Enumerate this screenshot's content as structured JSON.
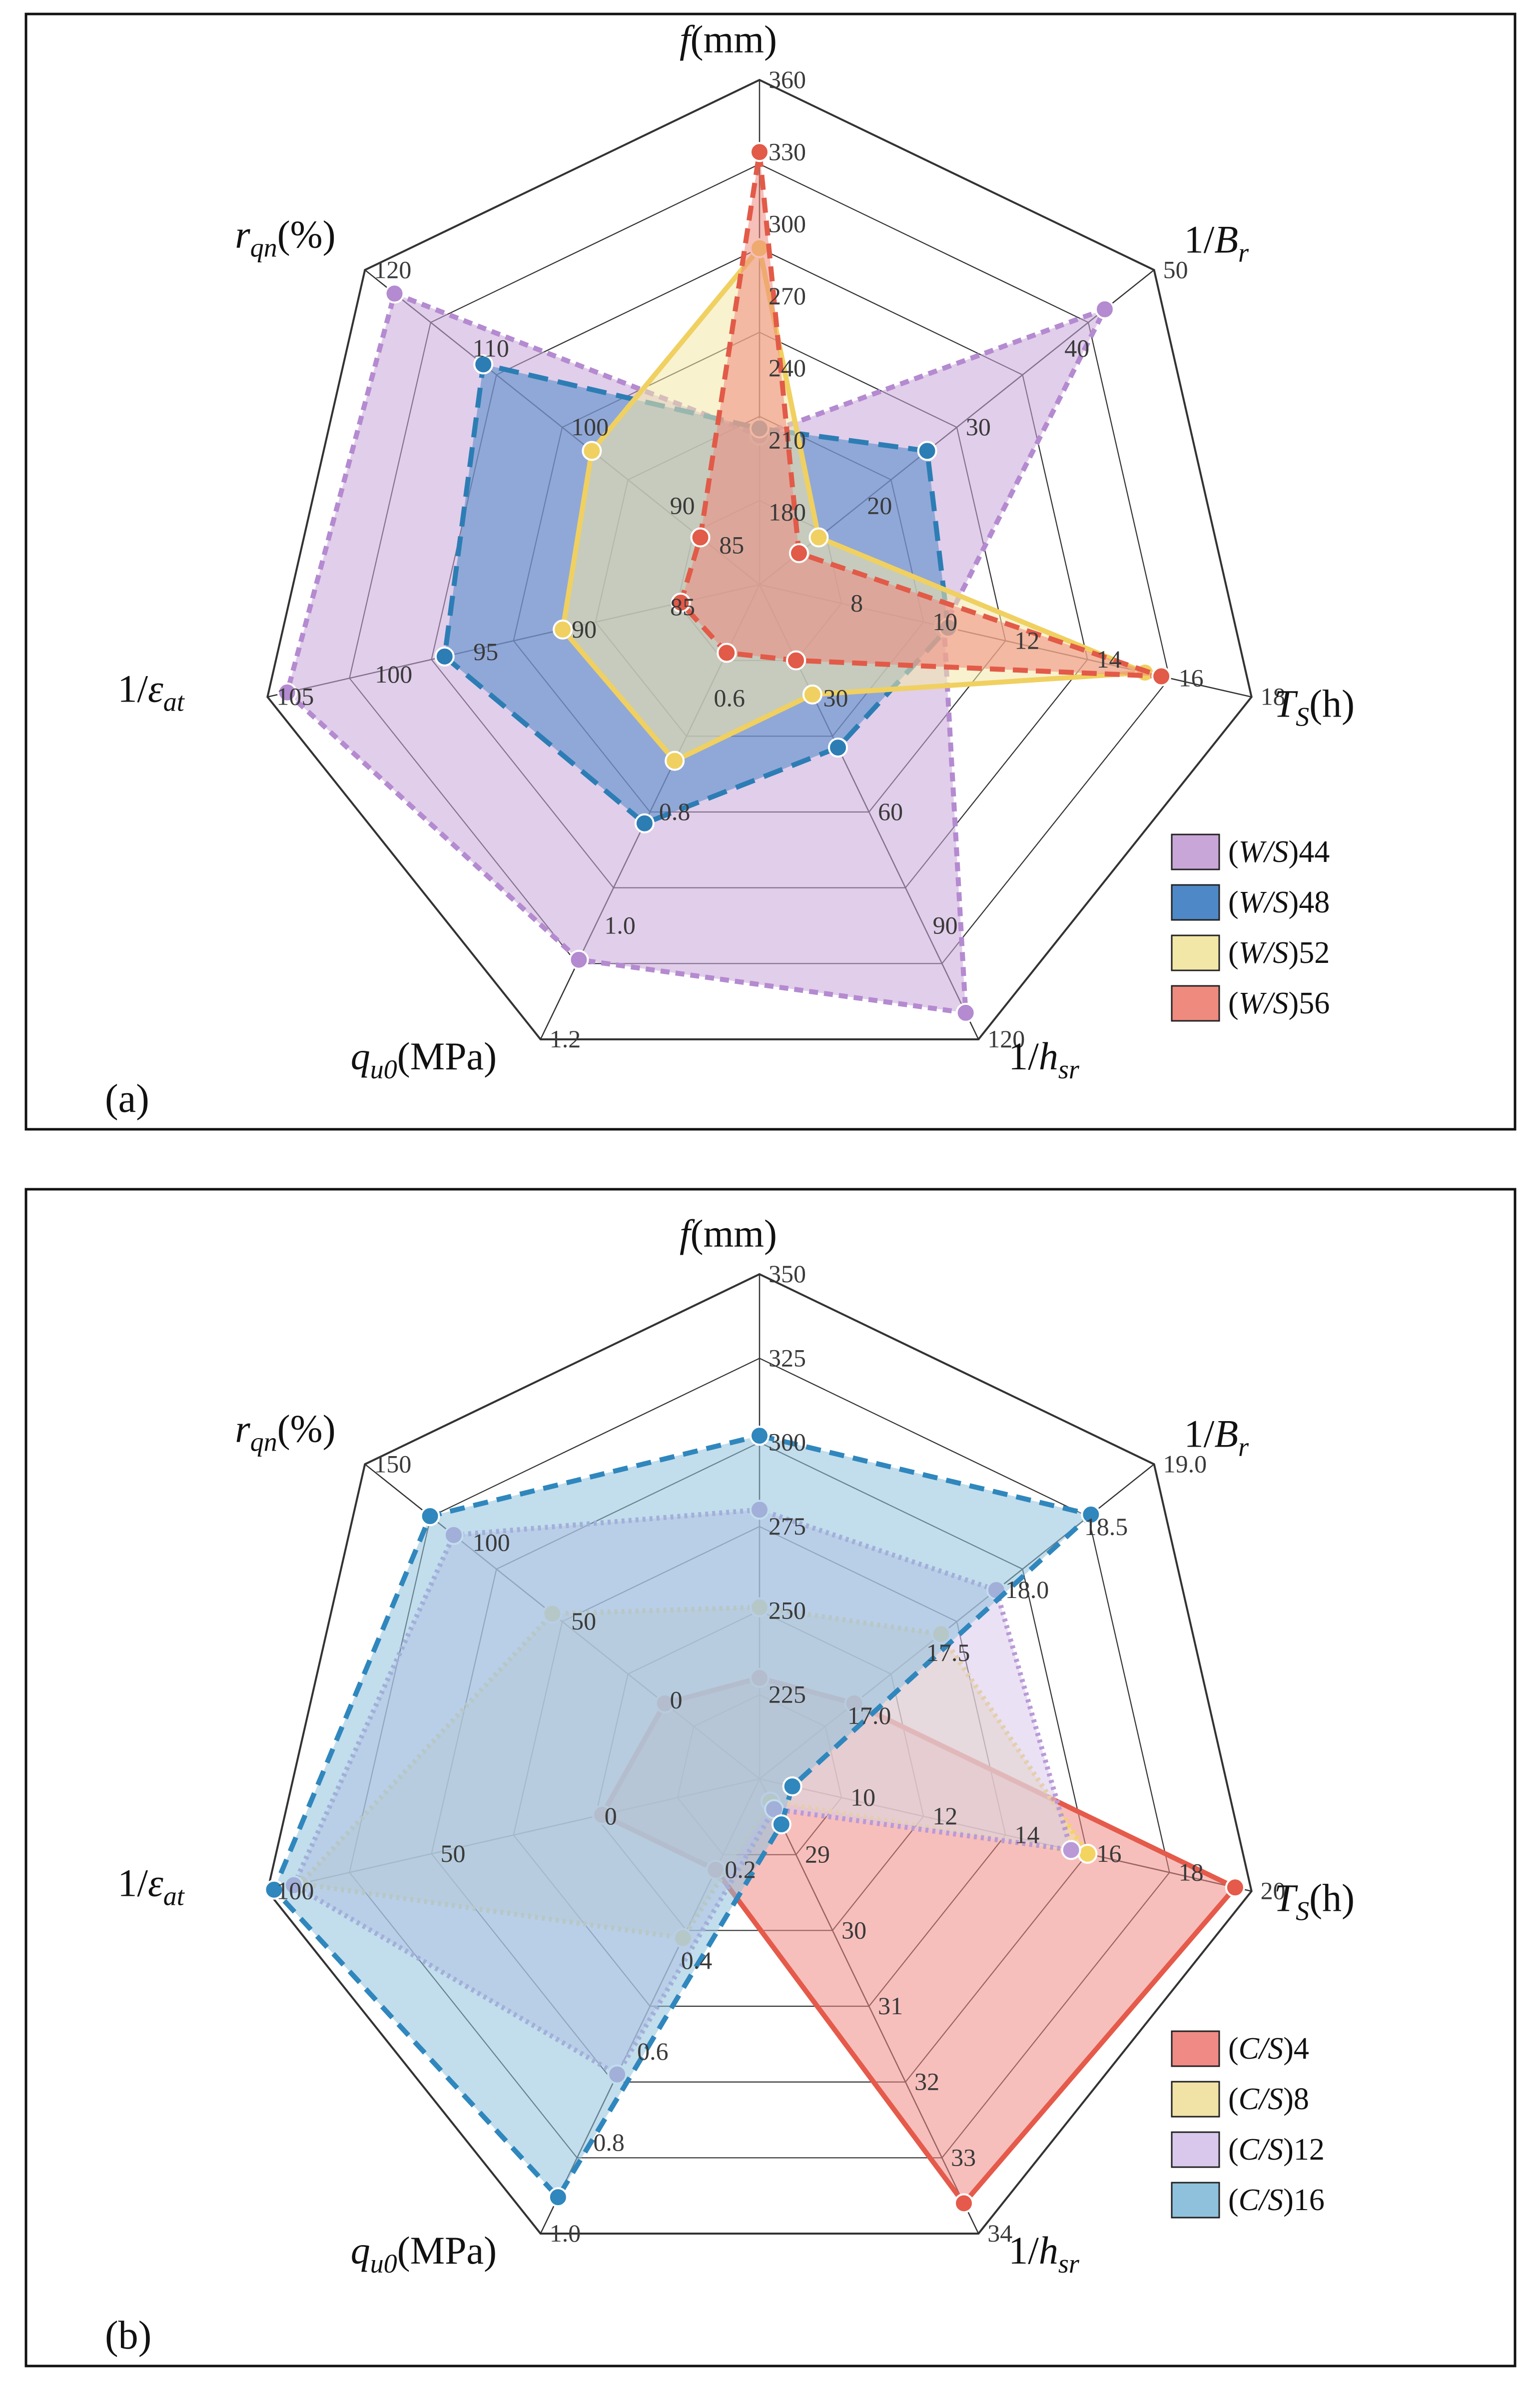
{
  "chart_data": [
    {
      "type": "radar",
      "panel_label": "(a)",
      "axes": [
        {
          "key": "f",
          "label_italic": "f",
          "label_rest": "(mm)",
          "label_sub": "",
          "ticks": [
            "180",
            "210",
            "240",
            "270",
            "300",
            "330",
            "360"
          ],
          "range": [
            150,
            360
          ]
        },
        {
          "key": "1/Br",
          "label_italic": "B",
          "label_pre": "1/",
          "label_sub": "r",
          "label_rest": "",
          "ticks": [
            "20",
            "30",
            "40",
            "50"
          ],
          "range": [
            10,
            50
          ]
        },
        {
          "key": "Ts",
          "label_italic": "T",
          "label_sub": "S",
          "label_rest": "(h)",
          "ticks": [
            "8",
            "10",
            "12",
            "14",
            "16",
            "18"
          ],
          "range": [
            6,
            18
          ]
        },
        {
          "key": "1/hsr",
          "label_italic": "h",
          "label_pre": "1/",
          "label_sub": "sr",
          "label_rest": "",
          "ticks": [
            "30",
            "60",
            "90",
            "120"
          ],
          "range": [
            0,
            120
          ]
        },
        {
          "key": "qu0",
          "label_italic": "q",
          "label_sub": "u0",
          "label_rest": "(MPa)",
          "ticks": [
            "0.6",
            "0.8",
            "1.0",
            "1.2"
          ],
          "range": [
            0.4,
            1.2
          ]
        },
        {
          "key": "1/eat",
          "label_italic": "ε",
          "label_pre": "1/",
          "label_sub": "at",
          "label_rest": "",
          "ticks": [
            "85",
            "90",
            "95",
            "100",
            "105"
          ],
          "range": [
            80,
            105
          ]
        },
        {
          "key": "rqn",
          "label_italic": "r",
          "label_sub": "qn",
          "label_rest": "(%)",
          "ticks": [
            "85",
            "90",
            "100",
            "110",
            "120"
          ],
          "range": [
            80,
            120
          ]
        }
      ],
      "series": [
        {
          "name": "(W/S)44",
          "name_italic": "W/S",
          "name_num": "44",
          "color": "#c9a6d8",
          "stroke": "#b48ad0",
          "dash": "18,12",
          "values": [
            212,
            45,
            10.5,
            113,
            1.06,
            104,
            117
          ]
        },
        {
          "name": "(W/S)48",
          "name_italic": "W/S",
          "name_num": "48",
          "color": "#4f88c6",
          "stroke": "#2d7db5",
          "dash": "40,20",
          "values": [
            215,
            27,
            10.6,
            43,
            0.82,
            96,
            108
          ]
        },
        {
          "name": "(W/S)52",
          "name_italic": "W/S",
          "name_num": "52",
          "color": "#f3e7a8",
          "stroke": "#f0d060",
          "dash": "none",
          "values": [
            290,
            16,
            15.4,
            29,
            0.71,
            90,
            97
          ]
        },
        {
          "name": "(W/S)56",
          "name_italic": "W/S",
          "name_num": "56",
          "color": "#ee8a7e",
          "stroke": "#e25a48",
          "dash": "30,16",
          "values": [
            330,
            14,
            15.8,
            20,
            0.52,
            84,
            86
          ]
        }
      ]
    },
    {
      "type": "radar",
      "panel_label": "(b)",
      "axes": [
        {
          "key": "f",
          "label_italic": "f",
          "label_rest": "(mm)",
          "label_sub": "",
          "ticks": [
            "225",
            "250",
            "275",
            "300",
            "325",
            "350"
          ],
          "range": [
            200,
            350
          ]
        },
        {
          "key": "1/Br",
          "label_italic": "B",
          "label_pre": "1/",
          "label_sub": "r",
          "label_rest": "",
          "ticks": [
            "17.0",
            "17.5",
            "18.0",
            "18.5",
            "19.0"
          ],
          "range": [
            16.5,
            19.0
          ]
        },
        {
          "key": "Ts",
          "label_italic": "T",
          "label_sub": "S",
          "label_rest": "(h)",
          "ticks": [
            "10",
            "12",
            "14",
            "16",
            "18",
            "20"
          ],
          "range": [
            8,
            20
          ]
        },
        {
          "key": "1/hsr",
          "label_italic": "h",
          "label_pre": "1/",
          "label_sub": "sr",
          "label_rest": "",
          "ticks": [
            "29",
            "30",
            "31",
            "32",
            "33",
            "34"
          ],
          "range": [
            28,
            34
          ]
        },
        {
          "key": "qu0",
          "label_italic": "q",
          "label_sub": "u0",
          "label_rest": "(MPa)",
          "ticks": [
            "0.2",
            "0.4",
            "0.6",
            "0.8",
            "1.0"
          ],
          "range": [
            0,
            1.0
          ]
        },
        {
          "key": "1/eat",
          "label_italic": "ε",
          "label_pre": "1/",
          "label_sub": "at",
          "label_rest": "",
          "ticks": [
            "0",
            "50",
            "100"
          ],
          "range": [
            -50,
            100
          ]
        },
        {
          "key": "rqn",
          "label_italic": "r",
          "label_sub": "qn",
          "label_rest": "(%)",
          "ticks": [
            "0",
            "50",
            "100",
            "150"
          ],
          "range": [
            -50,
            150
          ]
        }
      ],
      "series": [
        {
          "name": "(C/S)4",
          "name_italic": "C/S",
          "name_num": "4",
          "color": "#f08a85",
          "stroke": "#e55a4a",
          "dash": "none",
          "values": [
            230,
            17.1,
            19.6,
            33.6,
            0.2,
            -2,
            -2
          ]
        },
        {
          "name": "(C/S)8",
          "name_italic": "C/S",
          "name_num": "8",
          "color": "#f1e3a6",
          "stroke": "#f3d460",
          "dash": "6,8",
          "values": [
            251,
            17.65,
            16.0,
            28.3,
            0.35,
            90,
            55
          ]
        },
        {
          "name": "(C/S)12",
          "name_italic": "C/S",
          "name_num": "12",
          "color": "#d9c8ec",
          "stroke": "#b99ad6",
          "dash": "6,8",
          "values": [
            280,
            18.0,
            15.6,
            28.4,
            0.65,
            92,
            105
          ]
        },
        {
          "name": "(C/S)16",
          "name_italic": "C/S",
          "name_num": "16",
          "color": "#8fc1dc",
          "stroke": "#2f87bd",
          "dash": "30,18",
          "values": [
            302,
            18.6,
            8.8,
            28.6,
            0.92,
            98,
            117
          ]
        }
      ]
    }
  ]
}
